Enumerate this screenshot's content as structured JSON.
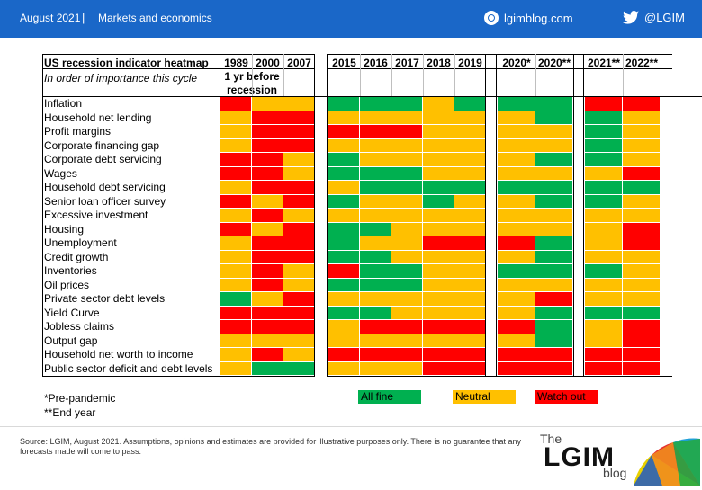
{
  "topbar": {
    "date": "August 2021",
    "separator": "|",
    "section": "Markets and economics",
    "site": "lgimblog.com",
    "twitter": "@LGIM"
  },
  "heading": {
    "title": "US recession indicator heatmap",
    "subtitle": "In order of importance this cycle",
    "note": "1 yr before recession"
  },
  "groups": [
    {
      "years": [
        "1989",
        "2000",
        "2007"
      ]
    },
    {
      "years": [
        "2015",
        "2016",
        "2017",
        "2018",
        "2019"
      ]
    },
    {
      "years": [
        "2020*",
        "2020**"
      ]
    },
    {
      "years": [
        "2021**",
        "2022**"
      ]
    }
  ],
  "colors": {
    "G": "#00b050",
    "Y": "#ffc000",
    "R": "#ff0000"
  },
  "chart_data": {
    "type": "heatmap",
    "title": "US recession indicator heatmap",
    "columns": [
      "1989",
      "2000",
      "2007",
      "2015",
      "2016",
      "2017",
      "2018",
      "2019",
      "2020*",
      "2020**",
      "2021**",
      "2022**"
    ],
    "rows": [
      {
        "label": "Inflation",
        "values": [
          "R",
          "Y",
          "Y",
          "G",
          "G",
          "G",
          "Y",
          "G",
          "G",
          "G",
          "R",
          "R"
        ]
      },
      {
        "label": "Household net lending",
        "values": [
          "Y",
          "R",
          "R",
          "Y",
          "Y",
          "Y",
          "Y",
          "Y",
          "Y",
          "G",
          "G",
          "Y"
        ]
      },
      {
        "label": "Profit margins",
        "values": [
          "Y",
          "R",
          "R",
          "R",
          "R",
          "R",
          "Y",
          "Y",
          "Y",
          "Y",
          "G",
          "Y"
        ]
      },
      {
        "label": "Corporate financing gap",
        "values": [
          "Y",
          "R",
          "R",
          "Y",
          "Y",
          "Y",
          "Y",
          "Y",
          "Y",
          "Y",
          "G",
          "Y"
        ]
      },
      {
        "label": "Corporate debt servicing",
        "values": [
          "R",
          "R",
          "Y",
          "G",
          "Y",
          "Y",
          "Y",
          "Y",
          "Y",
          "G",
          "G",
          "Y"
        ]
      },
      {
        "label": "Wages",
        "values": [
          "R",
          "R",
          "Y",
          "G",
          "G",
          "G",
          "Y",
          "Y",
          "Y",
          "Y",
          "Y",
          "R"
        ]
      },
      {
        "label": "Household debt servicing",
        "values": [
          "Y",
          "R",
          "R",
          "Y",
          "G",
          "G",
          "G",
          "G",
          "G",
          "G",
          "G",
          "G"
        ]
      },
      {
        "label": "Senior loan officer survey",
        "values": [
          "R",
          "Y",
          "R",
          "G",
          "Y",
          "Y",
          "G",
          "Y",
          "Y",
          "G",
          "G",
          "Y"
        ]
      },
      {
        "label": "Excessive investment",
        "values": [
          "Y",
          "R",
          "Y",
          "Y",
          "Y",
          "Y",
          "Y",
          "Y",
          "Y",
          "Y",
          "Y",
          "Y"
        ]
      },
      {
        "label": "Housing",
        "values": [
          "R",
          "Y",
          "R",
          "G",
          "G",
          "Y",
          "Y",
          "Y",
          "Y",
          "Y",
          "Y",
          "R"
        ]
      },
      {
        "label": "Unemployment",
        "values": [
          "Y",
          "R",
          "R",
          "G",
          "Y",
          "Y",
          "R",
          "R",
          "R",
          "G",
          "Y",
          "R"
        ]
      },
      {
        "label": "Credit growth",
        "values": [
          "Y",
          "R",
          "R",
          "G",
          "G",
          "Y",
          "Y",
          "Y",
          "Y",
          "G",
          "Y",
          "Y"
        ]
      },
      {
        "label": "Inventories",
        "values": [
          "Y",
          "R",
          "Y",
          "R",
          "G",
          "G",
          "Y",
          "Y",
          "G",
          "G",
          "G",
          "Y"
        ]
      },
      {
        "label": "Oil prices",
        "values": [
          "Y",
          "R",
          "Y",
          "G",
          "G",
          "G",
          "Y",
          "Y",
          "Y",
          "Y",
          "Y",
          "Y"
        ]
      },
      {
        "label": "Private sector debt levels",
        "values": [
          "G",
          "Y",
          "R",
          "Y",
          "Y",
          "Y",
          "Y",
          "Y",
          "Y",
          "R",
          "Y",
          "Y"
        ]
      },
      {
        "label": "Yield Curve",
        "values": [
          "R",
          "R",
          "R",
          "G",
          "G",
          "Y",
          "Y",
          "Y",
          "Y",
          "G",
          "G",
          "G"
        ]
      },
      {
        "label": "Jobless claims",
        "values": [
          "R",
          "R",
          "R",
          "Y",
          "R",
          "R",
          "R",
          "R",
          "R",
          "G",
          "Y",
          "R"
        ]
      },
      {
        "label": "Output gap",
        "values": [
          "Y",
          "Y",
          "Y",
          "Y",
          "Y",
          "Y",
          "Y",
          "Y",
          "Y",
          "G",
          "Y",
          "R"
        ]
      },
      {
        "label": "Household net worth to income",
        "values": [
          "Y",
          "R",
          "Y",
          "R",
          "R",
          "R",
          "R",
          "R",
          "R",
          "R",
          "R",
          "R"
        ]
      },
      {
        "label": "Public sector deficit and debt levels",
        "values": [
          "Y",
          "G",
          "G",
          "Y",
          "Y",
          "Y",
          "R",
          "R",
          "R",
          "R",
          "R",
          "R"
        ]
      }
    ],
    "legend": [
      {
        "key": "G",
        "label": "All fine"
      },
      {
        "key": "Y",
        "label": "Neutral"
      },
      {
        "key": "R",
        "label": "Watch out"
      }
    ]
  },
  "notes": {
    "pre_pandemic": "*Pre-pandemic",
    "end_year": "**End year"
  },
  "footer": {
    "source": "Source: LGIM, August 2021. Assumptions, opinions and estimates are provided for illustrative purposes only. There is no guarantee that any forecasts made will come to pass.",
    "logo_the": "The",
    "logo_main": "LGIM",
    "logo_blog": "blog"
  }
}
